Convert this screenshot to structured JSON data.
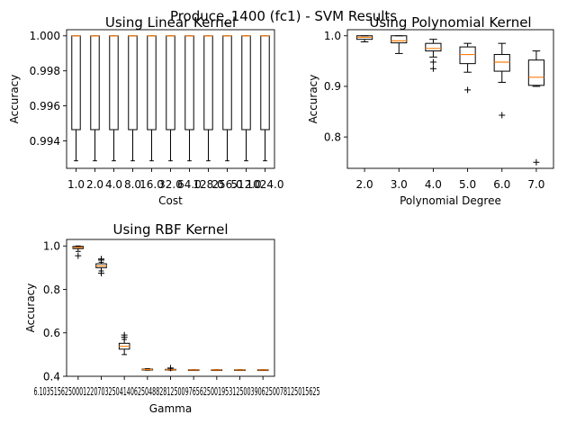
{
  "figure_title": "Produce_1400 (fc1) - SVM Results",
  "chart_data": [
    {
      "type": "box",
      "title": "Using Linear Kernel",
      "xlabel": "Cost",
      "ylabel": "Accuracy",
      "categories": [
        "1.0",
        "2.0",
        "4.0",
        "8.0",
        "16.0",
        "32.0",
        "64.0",
        "128.0",
        "256.0",
        "512.0",
        "1024.0"
      ],
      "ylim": [
        0.99243,
        1.00035
      ],
      "yticks": [
        0.994,
        0.996,
        0.998,
        1.0
      ],
      "ytick_labels": [
        "0.994",
        "0.996",
        "0.998",
        "1.000"
      ],
      "boxes": [
        {
          "whislo": 0.99286,
          "q1": 0.99464,
          "med": 1.0,
          "q3": 1.0,
          "whishi": 1.0,
          "fliers": []
        },
        {
          "whislo": 0.99286,
          "q1": 0.99464,
          "med": 1.0,
          "q3": 1.0,
          "whishi": 1.0,
          "fliers": []
        },
        {
          "whislo": 0.99286,
          "q1": 0.99464,
          "med": 1.0,
          "q3": 1.0,
          "whishi": 1.0,
          "fliers": []
        },
        {
          "whislo": 0.99286,
          "q1": 0.99464,
          "med": 1.0,
          "q3": 1.0,
          "whishi": 1.0,
          "fliers": []
        },
        {
          "whislo": 0.99286,
          "q1": 0.99464,
          "med": 1.0,
          "q3": 1.0,
          "whishi": 1.0,
          "fliers": []
        },
        {
          "whislo": 0.99286,
          "q1": 0.99464,
          "med": 1.0,
          "q3": 1.0,
          "whishi": 1.0,
          "fliers": []
        },
        {
          "whislo": 0.99286,
          "q1": 0.99464,
          "med": 1.0,
          "q3": 1.0,
          "whishi": 1.0,
          "fliers": []
        },
        {
          "whislo": 0.99286,
          "q1": 0.99464,
          "med": 1.0,
          "q3": 1.0,
          "whishi": 1.0,
          "fliers": []
        },
        {
          "whislo": 0.99286,
          "q1": 0.99464,
          "med": 1.0,
          "q3": 1.0,
          "whishi": 1.0,
          "fliers": []
        },
        {
          "whislo": 0.99286,
          "q1": 0.99464,
          "med": 1.0,
          "q3": 1.0,
          "whishi": 1.0,
          "fliers": []
        },
        {
          "whislo": 0.99286,
          "q1": 0.99464,
          "med": 1.0,
          "q3": 1.0,
          "whishi": 1.0,
          "fliers": []
        }
      ]
    },
    {
      "type": "box",
      "title": "Using Polynomial Kernel",
      "xlabel": "Polynomial Degree",
      "ylabel": "Accuracy",
      "categories": [
        "2.0",
        "3.0",
        "4.0",
        "5.0",
        "6.0",
        "7.0"
      ],
      "ylim": [
        0.738,
        1.012
      ],
      "yticks": [
        0.8,
        0.9,
        1.0
      ],
      "ytick_labels": [
        "0.8",
        "0.9",
        "1.0"
      ],
      "boxes": [
        {
          "whislo": 0.988,
          "q1": 0.993,
          "med": 0.997,
          "q3": 1.0,
          "whishi": 1.0,
          "fliers": []
        },
        {
          "whislo": 0.965,
          "q1": 0.986,
          "med": 0.99,
          "q3": 1.0,
          "whishi": 1.0,
          "fliers": []
        },
        {
          "whislo": 0.958,
          "q1": 0.97,
          "med": 0.975,
          "q3": 0.985,
          "whishi": 0.993,
          "fliers": [
            0.948,
            0.935
          ]
        },
        {
          "whislo": 0.928,
          "q1": 0.945,
          "med": 0.963,
          "q3": 0.978,
          "whishi": 0.985,
          "fliers": [
            0.893
          ]
        },
        {
          "whislo": 0.908,
          "q1": 0.93,
          "med": 0.948,
          "q3": 0.963,
          "whishi": 0.985,
          "fliers": [
            0.843
          ]
        },
        {
          "whislo": 0.9,
          "q1": 0.902,
          "med": 0.918,
          "q3": 0.952,
          "whishi": 0.97,
          "fliers": [
            0.75
          ]
        }
      ]
    },
    {
      "type": "box",
      "title": "Using RBF Kernel",
      "xlabel": "Gamma",
      "ylabel": "Accuracy",
      "categories": [
        "6.103515625e-05",
        "0.0001220703125",
        "0.000244140625",
        "0.00048828125",
        "0.0009765625",
        "0.001953125",
        "0.00390625",
        "0.0078125",
        "0.015625"
      ],
      "tick_labels_display": "6.10351562500012207032504140625048828125009765625001953125003906250078125015625",
      "ylim": [
        0.4,
        1.03
      ],
      "yticks": [
        0.4,
        0.6,
        0.8,
        1.0
      ],
      "ytick_labels": [
        "0.4",
        "0.6",
        "0.8",
        "1.0"
      ],
      "boxes": [
        {
          "whislo": 0.975,
          "q1": 0.988,
          "med": 0.993,
          "q3": 0.998,
          "whishi": 1.0,
          "fliers": [
            0.955
          ]
        },
        {
          "whislo": 0.885,
          "q1": 0.9,
          "med": 0.908,
          "q3": 0.918,
          "whishi": 0.925,
          "fliers": [
            0.935,
            0.94,
            0.875
          ]
        },
        {
          "whislo": 0.5,
          "q1": 0.525,
          "med": 0.538,
          "q3": 0.552,
          "whishi": 0.57,
          "fliers": [
            0.58,
            0.59
          ]
        },
        {
          "whislo": 0.428,
          "q1": 0.429,
          "med": 0.431,
          "q3": 0.433,
          "whishi": 0.435,
          "fliers": []
        },
        {
          "whislo": 0.428,
          "q1": 0.429,
          "med": 0.43,
          "q3": 0.432,
          "whishi": 0.433,
          "fliers": [
            0.438
          ]
        },
        {
          "whislo": 0.429,
          "q1": 0.429,
          "med": 0.429,
          "q3": 0.43,
          "whishi": 0.43,
          "fliers": []
        },
        {
          "whislo": 0.429,
          "q1": 0.429,
          "med": 0.429,
          "q3": 0.43,
          "whishi": 0.43,
          "fliers": []
        },
        {
          "whislo": 0.429,
          "q1": 0.429,
          "med": 0.429,
          "q3": 0.43,
          "whishi": 0.43,
          "fliers": []
        },
        {
          "whislo": 0.429,
          "q1": 0.429,
          "med": 0.429,
          "q3": 0.43,
          "whishi": 0.43,
          "fliers": []
        }
      ]
    }
  ],
  "colors": {
    "median": "#ff7f0e",
    "box": "#000000"
  }
}
